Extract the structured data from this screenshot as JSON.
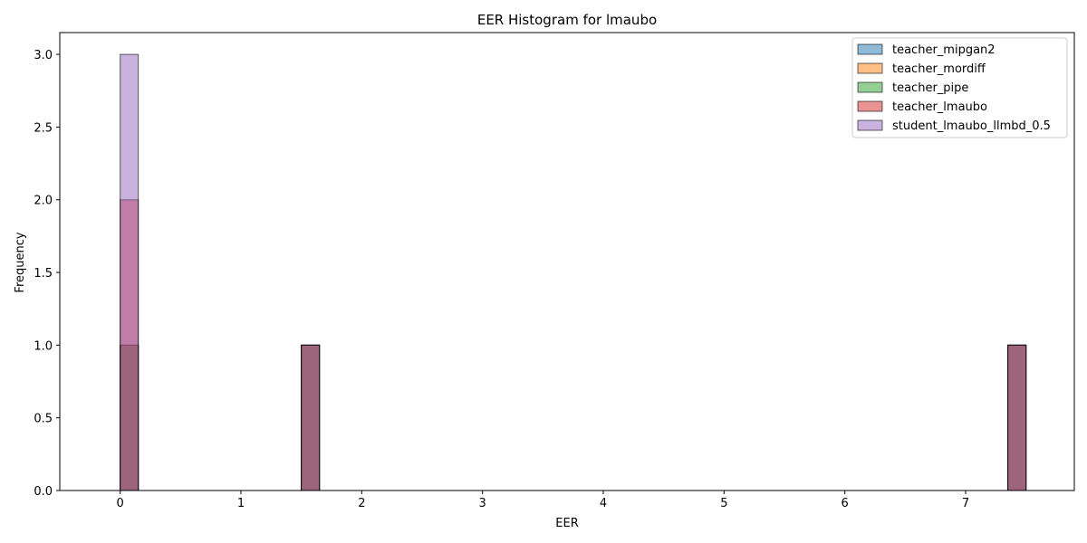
{
  "chart_data": {
    "type": "histogram",
    "title": "EER Histogram for lmaubo",
    "xlabel": "EER",
    "ylabel": "Frequency",
    "xlim": [
      -0.5,
      7.9
    ],
    "ylim": [
      0,
      3.15
    ],
    "x_ticks": [
      0,
      1,
      2,
      3,
      4,
      5,
      6,
      7
    ],
    "y_ticks": [
      0.0,
      0.5,
      1.0,
      1.5,
      2.0,
      2.5,
      3.0
    ],
    "x_tick_labels": [
      "0",
      "1",
      "2",
      "3",
      "4",
      "5",
      "6",
      "7"
    ],
    "y_tick_labels": [
      "0.0",
      "0.5",
      "1.0",
      "1.5",
      "2.0",
      "2.5",
      "3.0"
    ],
    "bin_width": 0.15,
    "legend_position": "top-right",
    "grid": false,
    "series": [
      {
        "name": "teacher_mipgan2",
        "color": "#1f77b4",
        "bars": [
          {
            "x0": 0.0,
            "x1": 0.15,
            "value": 1
          },
          {
            "x0": 1.5,
            "x1": 1.65,
            "value": 1
          },
          {
            "x0": 7.35,
            "x1": 7.5,
            "value": 1
          }
        ]
      },
      {
        "name": "teacher_mordiff",
        "color": "#ff7f0e",
        "bars": [
          {
            "x0": 0.0,
            "x1": 0.15,
            "value": 1
          },
          {
            "x0": 1.5,
            "x1": 1.65,
            "value": 1
          },
          {
            "x0": 7.35,
            "x1": 7.5,
            "value": 1
          }
        ]
      },
      {
        "name": "teacher_pipe",
        "color": "#2ca02c",
        "bars": [
          {
            "x0": 0.0,
            "x1": 0.15,
            "value": 1
          },
          {
            "x0": 1.5,
            "x1": 1.65,
            "value": 1
          },
          {
            "x0": 7.35,
            "x1": 7.5,
            "value": 1
          }
        ]
      },
      {
        "name": "teacher_lmaubo",
        "color": "#d62728",
        "bars": [
          {
            "x0": 0.0,
            "x1": 0.15,
            "value": 2
          },
          {
            "x0": 1.5,
            "x1": 1.65,
            "value": 1
          },
          {
            "x0": 7.35,
            "x1": 7.5,
            "value": 1
          }
        ]
      },
      {
        "name": "student_lmaubo_llmbd_0.5",
        "color": "#9467bd",
        "bars": [
          {
            "x0": 0.0,
            "x1": 0.15,
            "value": 3
          },
          {
            "x0": 1.5,
            "x1": 1.65,
            "value": 1
          },
          {
            "x0": 7.35,
            "x1": 7.5,
            "value": 1
          }
        ]
      }
    ]
  }
}
